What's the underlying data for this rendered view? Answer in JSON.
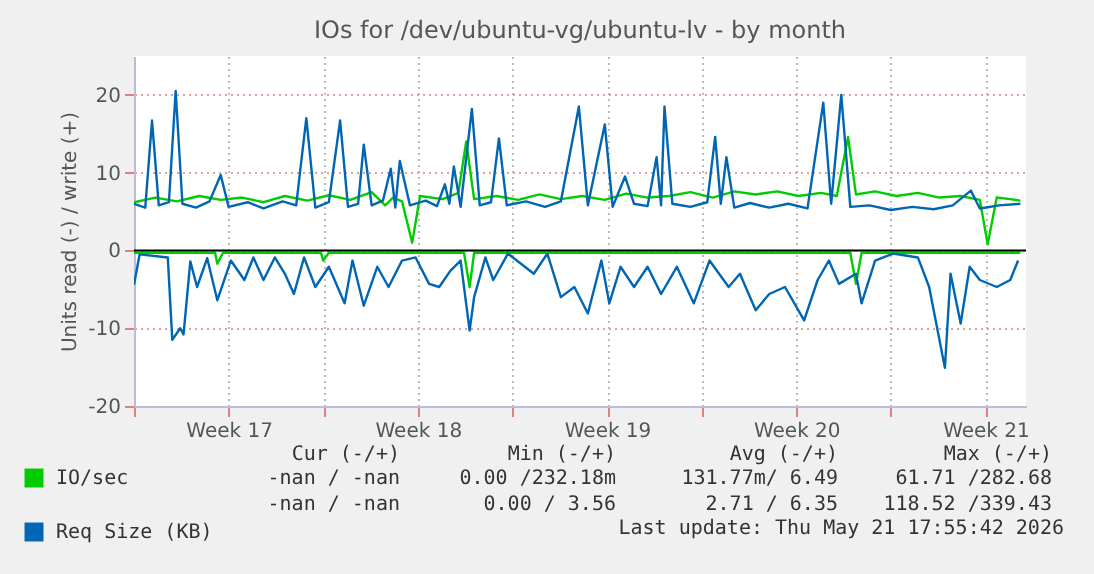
{
  "chart_data": {
    "type": "line",
    "title": "IOs for /dev/ubuntu-vg/ubuntu-lv - by month",
    "ylabel": "Units read (-) / write (+)",
    "xlim": [
      "2026-04-20T00:00",
      "2026-05-23T00:00"
    ],
    "ylim": [
      -20,
      25
    ],
    "xticks": [
      {
        "value": "2026-04-20T00:00",
        "label": null
      },
      {
        "value": "2026-04-23T12:00",
        "label": "Week 17"
      },
      {
        "value": "2026-04-27T00:00",
        "label": null
      },
      {
        "value": "2026-04-30T12:00",
        "label": "Week 18"
      },
      {
        "value": "2026-05-04T00:00",
        "label": null
      },
      {
        "value": "2026-05-07T12:00",
        "label": "Week 19"
      },
      {
        "value": "2026-05-11T00:00",
        "label": null
      },
      {
        "value": "2026-05-14T12:00",
        "label": "Week 20"
      },
      {
        "value": "2026-05-18T00:00",
        "label": null
      },
      {
        "value": "2026-05-21T12:00",
        "label": "Week 21"
      }
    ],
    "yticks": [
      -20,
      -10,
      0,
      10,
      20
    ],
    "grid": true,
    "legend": "bottom",
    "marker": "none",
    "line_style": "solid",
    "ref_lines": [
      {
        "axis": "y",
        "value": 0,
        "label": null,
        "color": "#000000"
      }
    ],
    "series": [
      {
        "name": "IO/sec",
        "color": "#00cc00",
        "x": [
          "2026-04-20T00:00",
          "2026-04-20T19:00",
          "2026-04-21T14:00",
          "2026-04-22T10:00",
          "2026-04-23T05:00",
          "2026-04-24T00:00",
          "2026-04-24T19:00",
          "2026-04-25T14:00",
          "2026-04-26T10:00",
          "2026-04-27T05:00",
          "2026-04-28T00:00",
          "2026-04-28T19:00",
          "2026-04-29T07:00",
          "2026-04-29T14:00",
          "2026-04-29T22:00",
          "2026-04-30T07:00",
          "2026-04-30T14:00",
          "2026-05-01T10:00",
          "2026-05-02T00:00",
          "2026-05-02T07:00",
          "2026-05-02T14:00",
          "2026-05-03T10:00",
          "2026-05-04T05:00",
          "2026-05-05T00:00",
          "2026-05-05T19:00",
          "2026-05-06T14:00",
          "2026-05-07T10:00",
          "2026-05-08T05:00",
          "2026-05-09T00:00",
          "2026-05-09T19:00",
          "2026-05-10T14:00",
          "2026-05-11T10:00",
          "2026-05-12T05:00",
          "2026-05-13T00:00",
          "2026-05-13T19:00",
          "2026-05-14T14:00",
          "2026-05-15T10:00",
          "2026-05-16T00:00",
          "2026-05-16T10:00",
          "2026-05-16T17:00",
          "2026-05-17T10:00",
          "2026-05-18T05:00",
          "2026-05-19T00:00",
          "2026-05-19T19:00",
          "2026-05-20T14:00",
          "2026-05-21T07:00",
          "2026-05-21T14:00",
          "2026-05-21T22:00",
          "2026-05-22T10:00",
          "2026-05-22T19:00"
        ],
        "values": [
          6.2,
          6.8,
          6.3,
          7,
          6.5,
          6.8,
          6.2,
          7,
          6.4,
          7.1,
          6.5,
          7.5,
          5.8,
          6.8,
          6.3,
          1.0,
          7,
          6.6,
          7.4,
          14,
          6.6,
          7,
          6.5,
          7.2,
          6.6,
          7,
          6.5,
          7.3,
          6.8,
          7,
          7.5,
          6.8,
          7.6,
          7.2,
          7.6,
          7,
          7.4,
          7,
          14.6,
          7.2,
          7.6,
          7,
          7.4,
          6.8,
          7,
          6.5,
          0.8,
          6.8,
          6.6,
          6.4
        ]
      },
      {
        "color": "#00cc00",
        "x": [
          "2026-04-20T00:00",
          "2026-04-23T00:00",
          "2026-04-23T02:00",
          "2026-04-23T07:00",
          "2026-04-26T22:00",
          "2026-04-27T00:00",
          "2026-04-27T05:00",
          "2026-05-02T05:00",
          "2026-05-02T10:00",
          "2026-05-02T14:00",
          "2026-05-16T12:00",
          "2026-05-16T17:00",
          "2026-05-16T22:00",
          "2026-05-22T19:00"
        ],
        "values": [
          -0.3,
          -0.3,
          -1.7,
          -0.3,
          -0.3,
          -1.3,
          -0.3,
          -0.3,
          -4.7,
          -0.3,
          -0.3,
          -4.3,
          -0.3,
          -0.3
        ]
      },
      {
        "name": "Req Size (KB)",
        "color": "#0066b3",
        "x": [
          "2026-04-20T00:00",
          "2026-04-20T10:00",
          "2026-04-20T16:00",
          "2026-04-20T22:00",
          "2026-04-21T07:00",
          "2026-04-21T13:00",
          "2026-04-21T19:00",
          "2026-04-22T07:00",
          "2026-04-22T19:00",
          "2026-04-23T05:00",
          "2026-04-23T12:00",
          "2026-04-24T05:00",
          "2026-04-24T19:00",
          "2026-04-25T12:00",
          "2026-04-26T00:00",
          "2026-04-26T09:00",
          "2026-04-26T17:00",
          "2026-04-27T05:00",
          "2026-04-27T15:00",
          "2026-04-27T22:00",
          "2026-04-28T07:00",
          "2026-04-28T12:00",
          "2026-04-28T19:00",
          "2026-04-29T05:00",
          "2026-04-29T12:00",
          "2026-04-29T16:00",
          "2026-04-29T20:00",
          "2026-04-30T05:00",
          "2026-04-30T19:00",
          "2026-05-01T05:00",
          "2026-05-01T12:00",
          "2026-05-01T16:00",
          "2026-05-01T20:00",
          "2026-05-02T02:00",
          "2026-05-02T12:00",
          "2026-05-02T19:00",
          "2026-05-03T05:00",
          "2026-05-03T12:00",
          "2026-05-03T19:00",
          "2026-05-04T12:00",
          "2026-05-05T05:00",
          "2026-05-05T19:00",
          "2026-05-06T11:00",
          "2026-05-06T19:00",
          "2026-05-07T10:00",
          "2026-05-07T17:00",
          "2026-05-08T04:00",
          "2026-05-08T12:00",
          "2026-05-09T00:00",
          "2026-05-09T08:00",
          "2026-05-09T12:00",
          "2026-05-09T15:00",
          "2026-05-09T22:00",
          "2026-05-10T14:00",
          "2026-05-11T05:00",
          "2026-05-11T12:00",
          "2026-05-11T17:00",
          "2026-05-11T22:00",
          "2026-05-12T05:00",
          "2026-05-12T19:00",
          "2026-05-13T12:00",
          "2026-05-14T05:00",
          "2026-05-14T22:00",
          "2026-05-15T12:00",
          "2026-05-15T19:00",
          "2026-05-16T04:00",
          "2026-05-16T12:00",
          "2026-05-17T05:00",
          "2026-05-18T00:00",
          "2026-05-18T19:00",
          "2026-05-19T14:00",
          "2026-05-20T07:00",
          "2026-05-20T23:00",
          "2026-05-21T07:00",
          "2026-05-22T00:00",
          "2026-05-22T19:00"
        ],
        "values": [
          6,
          5.5,
          16.7,
          5.8,
          6.2,
          20.5,
          6,
          5.5,
          6.3,
          9.7,
          5.6,
          6.2,
          5.4,
          6.3,
          5.8,
          17,
          5.5,
          6.2,
          16.7,
          5.6,
          6,
          13.6,
          5.8,
          6.4,
          10.5,
          5.5,
          11.5,
          5.8,
          6.4,
          5.7,
          8.5,
          6,
          10.8,
          5.6,
          18.2,
          5.8,
          6.2,
          14.4,
          5.8,
          6.3,
          5.6,
          6.3,
          18.5,
          5.8,
          16.2,
          5.6,
          9.5,
          6,
          5.7,
          12,
          5.8,
          18.5,
          6,
          5.6,
          6.2,
          14.6,
          6,
          12,
          5.5,
          6.1,
          5.5,
          6,
          5.4,
          19,
          6,
          20,
          5.6,
          5.8,
          5.2,
          5.6,
          5.3,
          5.8,
          7.7,
          5.4,
          5.8,
          6
        ]
      },
      {
        "color": "#0066b3",
        "x": [
          "2026-04-20T00:00",
          "2026-04-20T05:00",
          "2026-04-21T06:00",
          "2026-04-21T10:00",
          "2026-04-21T17:00",
          "2026-04-21T20:00",
          "2026-04-22T02:00",
          "2026-04-22T08:00",
          "2026-04-22T17:00",
          "2026-04-23T02:00",
          "2026-04-23T14:00",
          "2026-04-24T02:00",
          "2026-04-24T10:00",
          "2026-04-24T19:00",
          "2026-04-25T05:00",
          "2026-04-25T14:00",
          "2026-04-25T22:00",
          "2026-04-26T07:00",
          "2026-04-26T17:00",
          "2026-04-27T05:00",
          "2026-04-27T19:00",
          "2026-04-28T02:00",
          "2026-04-28T12:00",
          "2026-04-29T00:00",
          "2026-04-29T10:00",
          "2026-04-29T22:00",
          "2026-04-30T10:00",
          "2026-04-30T22:00",
          "2026-05-01T07:00",
          "2026-05-01T17:00",
          "2026-05-02T02:00",
          "2026-05-02T10:00",
          "2026-05-02T14:00",
          "2026-05-03T00:00",
          "2026-05-03T07:00",
          "2026-05-03T20:00",
          "2026-05-04T19:00",
          "2026-05-05T07:00",
          "2026-05-05T19:00",
          "2026-05-06T07:00",
          "2026-05-06T19:00",
          "2026-05-07T07:00",
          "2026-05-07T14:00",
          "2026-05-08T00:00",
          "2026-05-08T12:00",
          "2026-05-09T00:00",
          "2026-05-09T12:00",
          "2026-05-10T02:00",
          "2026-05-10T17:00",
          "2026-05-11T07:00",
          "2026-05-12T00:00",
          "2026-05-12T10:00",
          "2026-05-13T00:00",
          "2026-05-13T12:00",
          "2026-05-14T02:00",
          "2026-05-14T19:00",
          "2026-05-15T07:00",
          "2026-05-15T17:00",
          "2026-05-16T02:00",
          "2026-05-16T17:00",
          "2026-05-16T22:00",
          "2026-05-17T10:00",
          "2026-05-18T02:00",
          "2026-05-19T00:00",
          "2026-05-19T10:00",
          "2026-05-20T00:00",
          "2026-05-20T05:00",
          "2026-05-20T14:00",
          "2026-05-20T22:00",
          "2026-05-21T07:00",
          "2026-05-21T22:00",
          "2026-05-22T10:00",
          "2026-05-22T17:00"
        ],
        "values": [
          -4.4,
          -0.5,
          -0.9,
          -11.5,
          -10,
          -10.8,
          -1.4,
          -4.7,
          -1.0,
          -6.4,
          -1.3,
          -3.8,
          -0.9,
          -3.8,
          -0.9,
          -3.0,
          -5.6,
          -0.9,
          -4.7,
          -2.1,
          -6.8,
          -1.3,
          -7.1,
          -2.1,
          -4.7,
          -1.3,
          -0.9,
          -4.3,
          -4.7,
          -2.6,
          -1.3,
          -10.3,
          -6,
          -0.9,
          -3.8,
          -0.4,
          -3.0,
          -0.4,
          -6.0,
          -4.7,
          -8.1,
          -1.3,
          -6.8,
          -2.1,
          -4.7,
          -2.1,
          -5.6,
          -2.1,
          -6.8,
          -1.3,
          -4.7,
          -3.0,
          -7.7,
          -5.6,
          -4.7,
          -9.0,
          -3.8,
          -1.3,
          -4.3,
          -3.0,
          -6.8,
          -1.3,
          -0.4,
          -0.9,
          -4.7,
          -15.1,
          -3.0,
          -9.4,
          -2.1,
          -3.8,
          -4.7,
          -3.8,
          -1.3
        ]
      }
    ],
    "annotations": [
      "Cur (-/+)",
      "Min (-/+)",
      "Avg (-/+)",
      "Max (-/+)",
      "-nan /  -nan",
      "0.00 /232.18m",
      "131.77m/  6.49",
      "61.71 /282.68",
      "-nan /  -nan",
      "0.00 /  3.56",
      "2.71 /  6.35",
      "118.52 /339.43",
      "Last update: Thu May 21 17:55:42 2026"
    ]
  }
}
